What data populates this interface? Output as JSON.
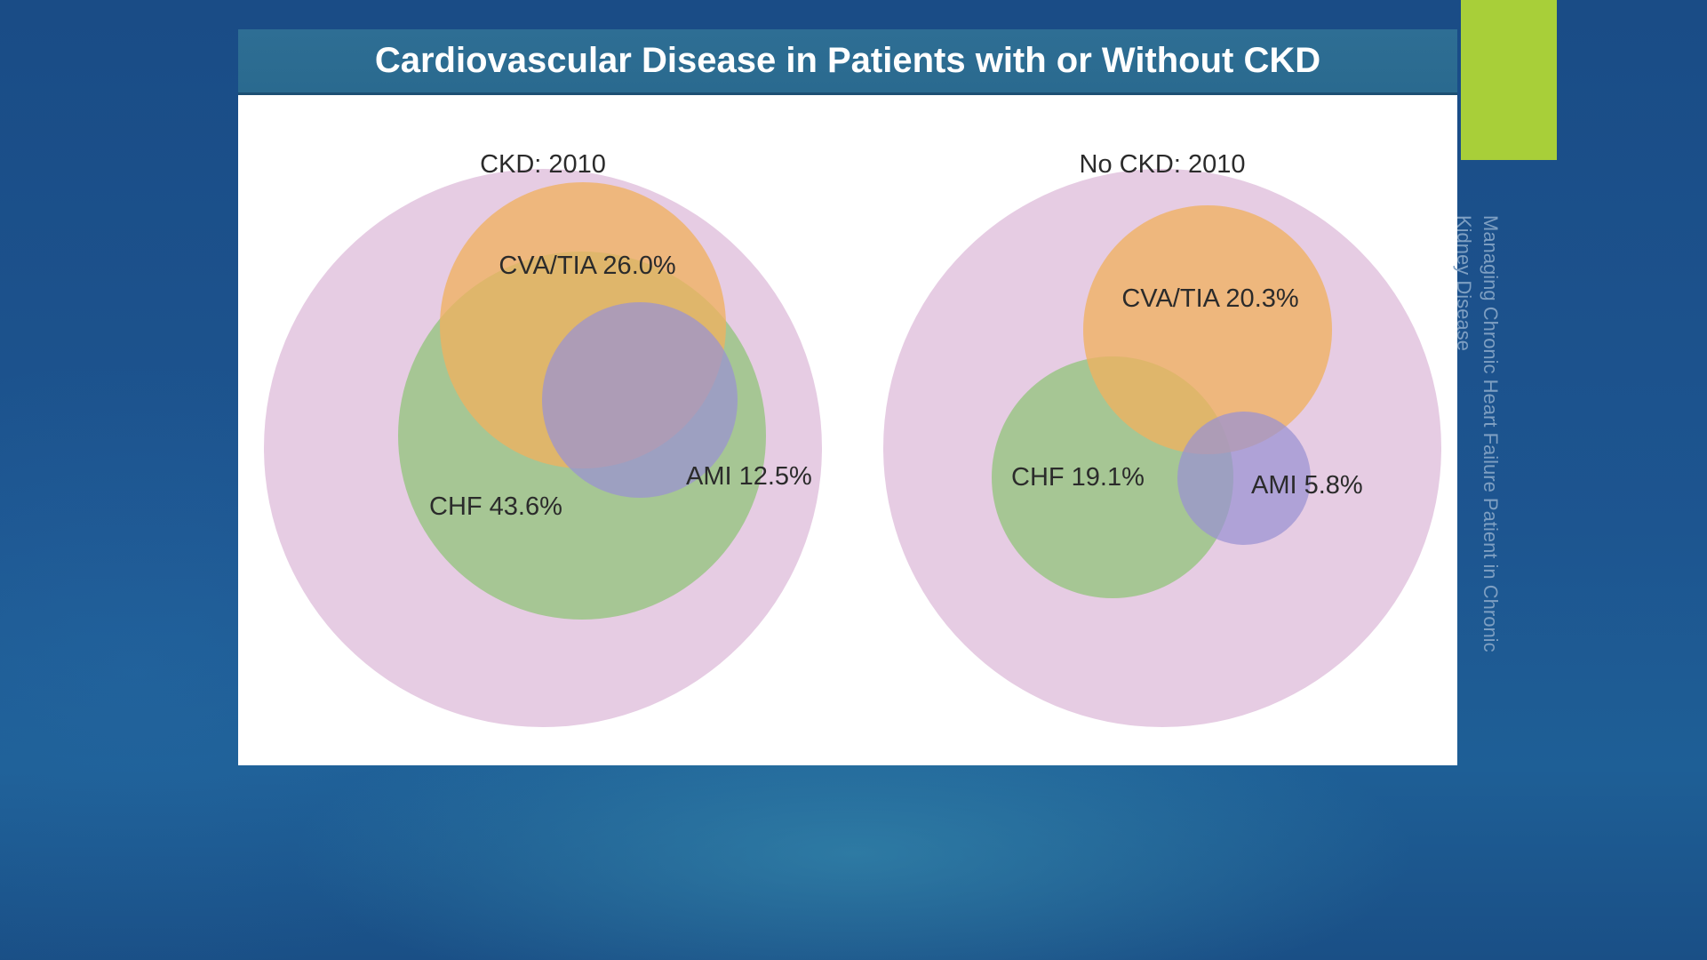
{
  "slide": {
    "title": "Cardiovascular Disease in Patients with or Without CKD",
    "side_caption": "Managing Chronic Heart Failure Patient in Chronic Kidney Disease"
  },
  "colors": {
    "title_bar": "#2e6e94",
    "accent": "#a8cf39",
    "outer_circle": "#e6cce3",
    "cva_tia": "#f0b160",
    "chf": "#97c582",
    "ami": "#9a92d2"
  },
  "panels": [
    {
      "title": "CKD: 2010",
      "sets": {
        "cva_tia": {
          "label": "CVA/TIA 26.0%"
        },
        "chf": {
          "label": "CHF 43.6%"
        },
        "ami": {
          "label": "AMI 12.5%"
        }
      }
    },
    {
      "title": "No CKD: 2010",
      "sets": {
        "cva_tia": {
          "label": "CVA/TIA 20.3%"
        },
        "chf": {
          "label": "CHF 19.1%"
        },
        "ami": {
          "label": "AMI 5.8%"
        }
      }
    }
  ]
}
